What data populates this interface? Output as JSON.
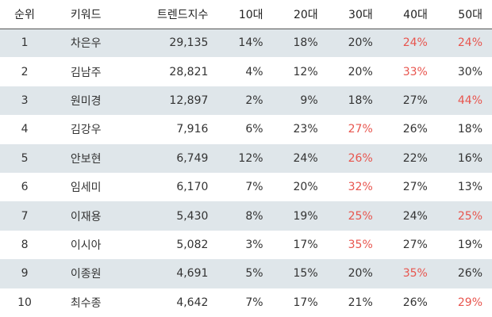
{
  "headers": {
    "rank": "순위",
    "keyword": "키워드",
    "trend_index": "트렌드지수",
    "age10": "10대",
    "age20": "20대",
    "age30": "30대",
    "age40": "40대",
    "age50": "50대"
  },
  "colors": {
    "highlight": "#e8554e",
    "stripe": "#dfe6ea",
    "text": "#333333"
  },
  "rows": [
    {
      "rank": "1",
      "keyword": "차은우",
      "index": "29,135",
      "a10": "14%",
      "a20": "18%",
      "a30": "20%",
      "a40": "24%",
      "a50": "24%",
      "highlight": [
        "a40",
        "a50"
      ]
    },
    {
      "rank": "2",
      "keyword": "김남주",
      "index": "28,821",
      "a10": "4%",
      "a20": "12%",
      "a30": "20%",
      "a40": "33%",
      "a50": "30%",
      "highlight": [
        "a40"
      ]
    },
    {
      "rank": "3",
      "keyword": "원미경",
      "index": "12,897",
      "a10": "2%",
      "a20": "9%",
      "a30": "18%",
      "a40": "27%",
      "a50": "44%",
      "highlight": [
        "a50"
      ]
    },
    {
      "rank": "4",
      "keyword": "김강우",
      "index": "7,916",
      "a10": "6%",
      "a20": "23%",
      "a30": "27%",
      "a40": "26%",
      "a50": "18%",
      "highlight": [
        "a30"
      ]
    },
    {
      "rank": "5",
      "keyword": "안보현",
      "index": "6,749",
      "a10": "12%",
      "a20": "24%",
      "a30": "26%",
      "a40": "22%",
      "a50": "16%",
      "highlight": [
        "a30"
      ]
    },
    {
      "rank": "6",
      "keyword": "임세미",
      "index": "6,170",
      "a10": "7%",
      "a20": "20%",
      "a30": "32%",
      "a40": "27%",
      "a50": "13%",
      "highlight": [
        "a30"
      ]
    },
    {
      "rank": "7",
      "keyword": "이재용",
      "index": "5,430",
      "a10": "8%",
      "a20": "19%",
      "a30": "25%",
      "a40": "24%",
      "a50": "25%",
      "highlight": [
        "a30",
        "a50"
      ]
    },
    {
      "rank": "8",
      "keyword": "이시아",
      "index": "5,082",
      "a10": "3%",
      "a20": "17%",
      "a30": "35%",
      "a40": "27%",
      "a50": "19%",
      "highlight": [
        "a30"
      ]
    },
    {
      "rank": "9",
      "keyword": "이종원",
      "index": "4,691",
      "a10": "5%",
      "a20": "15%",
      "a30": "20%",
      "a40": "35%",
      "a50": "26%",
      "highlight": [
        "a40"
      ]
    },
    {
      "rank": "10",
      "keyword": "최수종",
      "index": "4,642",
      "a10": "7%",
      "a20": "17%",
      "a30": "21%",
      "a40": "26%",
      "a50": "29%",
      "highlight": [
        "a50"
      ]
    }
  ]
}
